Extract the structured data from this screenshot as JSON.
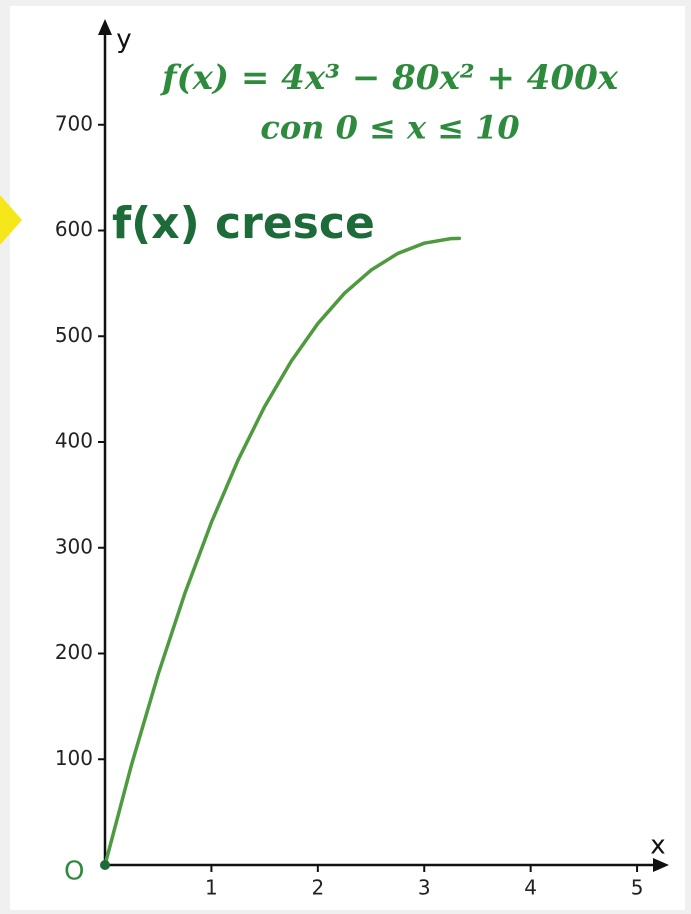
{
  "chart_data": {
    "type": "line",
    "annotations": {
      "formula": "f(x) = 4x³ − 80x² + 400x",
      "domain": "con 0 ≤ x ≤ 10",
      "note": "f(x) cresce",
      "origin": "O"
    },
    "xlabel": "x",
    "ylabel": "y",
    "x": [
      0,
      0.25,
      0.5,
      0.75,
      1,
      1.25,
      1.5,
      1.75,
      2,
      2.25,
      2.5,
      2.75,
      3,
      3.25,
      3.33
    ],
    "series": [
      {
        "color": "#4e9a3e",
        "values": [
          0,
          95.06,
          180.5,
          256.7,
          324,
          382.8,
          433.5,
          476.4,
          512,
          540.6,
          562.5,
          578.2,
          588,
          592.3,
          592.6
        ]
      }
    ],
    "xlim": [
      0,
      5.3
    ],
    "ylim": [
      0,
      800
    ],
    "xticks": [
      1,
      2,
      3,
      4,
      5
    ],
    "yticks": [
      100,
      200,
      300,
      400,
      500,
      600,
      700
    ]
  }
}
